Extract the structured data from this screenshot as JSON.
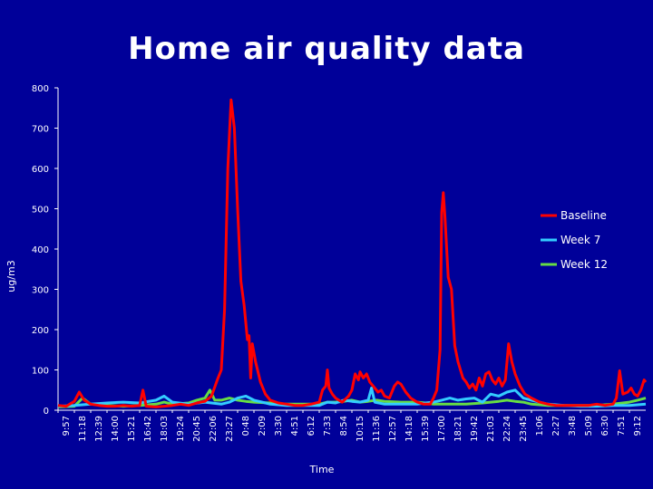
{
  "chart_data": {
    "type": "line",
    "title": "Home air quality data",
    "xlabel": "Time",
    "ylabel": "ug/m3",
    "ylim": [
      0,
      800
    ],
    "yticks": [
      0,
      100,
      200,
      300,
      400,
      500,
      600,
      700,
      800
    ],
    "categories": [
      "9:57",
      "11:18",
      "12:39",
      "14:00",
      "15:21",
      "16:42",
      "18:03",
      "19:24",
      "20:45",
      "22:06",
      "23:27",
      "0:48",
      "2:09",
      "3:30",
      "4:51",
      "6:12",
      "7:33",
      "8:54",
      "10:15",
      "11:36",
      "12:57",
      "14:18",
      "15:39",
      "17:00",
      "18:21",
      "19:42",
      "21:03",
      "22:24",
      "23:45",
      "1:06",
      "2:27",
      "3:48",
      "5:09",
      "6:30",
      "7:51",
      "9:12"
    ],
    "legend_position": "right",
    "grid": false,
    "series": [
      {
        "name": "Baseline",
        "color": "#ff0000",
        "values": [
          [
            0,
            12
          ],
          [
            0.5,
            10
          ],
          [
            1,
            22
          ],
          [
            1.3,
            45
          ],
          [
            1.6,
            25
          ],
          [
            2,
            15
          ],
          [
            2.5,
            12
          ],
          [
            3,
            10
          ],
          [
            3.5,
            10
          ],
          [
            4,
            12
          ],
          [
            4.5,
            10
          ],
          [
            5,
            12
          ],
          [
            5.2,
            50
          ],
          [
            5.4,
            10
          ],
          [
            6,
            8
          ],
          [
            6.5,
            10
          ],
          [
            7,
            12
          ],
          [
            7.5,
            15
          ],
          [
            8,
            12
          ],
          [
            8.5,
            18
          ],
          [
            9,
            22
          ],
          [
            9.4,
            35
          ],
          [
            9.8,
            80
          ],
          [
            10,
            100
          ],
          [
            10.2,
            250
          ],
          [
            10.4,
            600
          ],
          [
            10.6,
            770
          ],
          [
            10.8,
            700
          ],
          [
            11,
            500
          ],
          [
            11.2,
            320
          ],
          [
            11.4,
            260
          ],
          [
            11.6,
            175
          ],
          [
            11.7,
            185
          ],
          [
            11.8,
            80
          ],
          [
            11.9,
            165
          ],
          [
            12.1,
            120
          ],
          [
            12.4,
            70
          ],
          [
            12.7,
            40
          ],
          [
            13,
            25
          ],
          [
            13.5,
            18
          ],
          [
            14,
            15
          ],
          [
            14.5,
            12
          ],
          [
            15,
            12
          ],
          [
            15.5,
            15
          ],
          [
            16,
            20
          ],
          [
            16.2,
            50
          ],
          [
            16.4,
            60
          ],
          [
            16.5,
            100
          ],
          [
            16.6,
            55
          ],
          [
            16.8,
            40
          ],
          [
            17,
            30
          ],
          [
            17.4,
            20
          ],
          [
            17.8,
            35
          ],
          [
            18,
            50
          ],
          [
            18.2,
            90
          ],
          [
            18.4,
            75
          ],
          [
            18.5,
            95
          ],
          [
            18.7,
            80
          ],
          [
            18.9,
            90
          ],
          [
            19.1,
            70
          ],
          [
            19.3,
            60
          ],
          [
            19.6,
            45
          ],
          [
            19.8,
            50
          ],
          [
            20,
            35
          ],
          [
            20.3,
            30
          ],
          [
            20.6,
            60
          ],
          [
            20.8,
            70
          ],
          [
            21,
            65
          ],
          [
            21.3,
            45
          ],
          [
            21.6,
            30
          ],
          [
            22,
            20
          ],
          [
            22.4,
            15
          ],
          [
            22.8,
            15
          ],
          [
            23,
            30
          ],
          [
            23.2,
            50
          ],
          [
            23.4,
            150
          ],
          [
            23.5,
            490
          ],
          [
            23.6,
            540
          ],
          [
            23.7,
            480
          ],
          [
            23.9,
            330
          ],
          [
            24.1,
            300
          ],
          [
            24.3,
            160
          ],
          [
            24.5,
            120
          ],
          [
            24.8,
            80
          ],
          [
            25,
            70
          ],
          [
            25.2,
            55
          ],
          [
            25.4,
            65
          ],
          [
            25.6,
            50
          ],
          [
            25.8,
            80
          ],
          [
            26,
            60
          ],
          [
            26.2,
            90
          ],
          [
            26.4,
            95
          ],
          [
            26.6,
            75
          ],
          [
            26.8,
            65
          ],
          [
            27,
            80
          ],
          [
            27.2,
            60
          ],
          [
            27.4,
            75
          ],
          [
            27.6,
            165
          ],
          [
            27.8,
            120
          ],
          [
            28,
            90
          ],
          [
            28.3,
            60
          ],
          [
            28.6,
            40
          ],
          [
            29,
            30
          ],
          [
            29.5,
            20
          ],
          [
            30,
            15
          ],
          [
            30.5,
            12
          ],
          [
            31,
            12
          ],
          [
            31.5,
            12
          ],
          [
            32,
            12
          ],
          [
            32.5,
            12
          ],
          [
            33,
            15
          ],
          [
            33.5,
            12
          ],
          [
            34,
            15
          ],
          [
            34.2,
            30
          ],
          [
            34.4,
            98
          ],
          [
            34.6,
            40
          ],
          [
            34.9,
            45
          ],
          [
            35.1,
            55
          ],
          [
            35.3,
            40
          ],
          [
            35.5,
            35
          ],
          [
            35.7,
            50
          ],
          [
            35.9,
            75
          ],
          [
            36,
            70
          ]
        ]
      },
      {
        "name": "Week 7",
        "color": "#33ccff",
        "values": [
          [
            0,
            10
          ],
          [
            1,
            12
          ],
          [
            2,
            15
          ],
          [
            3,
            18
          ],
          [
            4,
            20
          ],
          [
            5,
            18
          ],
          [
            6,
            25
          ],
          [
            6.5,
            35
          ],
          [
            7,
            20
          ],
          [
            8,
            15
          ],
          [
            9,
            20
          ],
          [
            10,
            15
          ],
          [
            10.5,
            20
          ],
          [
            11,
            30
          ],
          [
            11.5,
            35
          ],
          [
            12,
            25
          ],
          [
            12.5,
            20
          ],
          [
            13,
            15
          ],
          [
            14,
            12
          ],
          [
            15,
            12
          ],
          [
            16,
            12
          ],
          [
            16.5,
            20
          ],
          [
            17,
            18
          ],
          [
            17.5,
            25
          ],
          [
            18,
            22
          ],
          [
            18.5,
            20
          ],
          [
            19,
            25
          ],
          [
            19.2,
            55
          ],
          [
            19.4,
            20
          ],
          [
            20,
            15
          ],
          [
            21,
            15
          ],
          [
            22,
            15
          ],
          [
            22.5,
            18
          ],
          [
            23,
            20
          ],
          [
            23.5,
            25
          ],
          [
            24,
            30
          ],
          [
            24.5,
            25
          ],
          [
            25,
            28
          ],
          [
            25.5,
            30
          ],
          [
            26,
            20
          ],
          [
            26.5,
            40
          ],
          [
            27,
            35
          ],
          [
            27.5,
            45
          ],
          [
            28,
            50
          ],
          [
            28.5,
            30
          ],
          [
            29,
            25
          ],
          [
            30,
            15
          ],
          [
            31,
            12
          ],
          [
            32,
            10
          ],
          [
            33,
            10
          ],
          [
            34,
            12
          ],
          [
            35,
            12
          ],
          [
            36,
            15
          ]
        ]
      },
      {
        "name": "Week 12",
        "color": "#66dd44",
        "values": [
          [
            0,
            8
          ],
          [
            1,
            10
          ],
          [
            1.5,
            30
          ],
          [
            2,
            15
          ],
          [
            3,
            12
          ],
          [
            4,
            10
          ],
          [
            5,
            12
          ],
          [
            6,
            15
          ],
          [
            6.5,
            20
          ],
          [
            7,
            15
          ],
          [
            8,
            18
          ],
          [
            8.5,
            25
          ],
          [
            9,
            30
          ],
          [
            9.3,
            50
          ],
          [
            9.6,
            25
          ],
          [
            10,
            25
          ],
          [
            10.5,
            30
          ],
          [
            11,
            25
          ],
          [
            11.5,
            22
          ],
          [
            12,
            20
          ],
          [
            13,
            18
          ],
          [
            14,
            15
          ],
          [
            15,
            15
          ],
          [
            16,
            15
          ],
          [
            16.5,
            20
          ],
          [
            17,
            20
          ],
          [
            17.5,
            22
          ],
          [
            18,
            25
          ],
          [
            18.5,
            20
          ],
          [
            19,
            22
          ],
          [
            19.5,
            25
          ],
          [
            20,
            22
          ],
          [
            21,
            20
          ],
          [
            22,
            20
          ],
          [
            22.5,
            18
          ],
          [
            23,
            15
          ],
          [
            24,
            15
          ],
          [
            25,
            15
          ],
          [
            26,
            18
          ],
          [
            26.5,
            20
          ],
          [
            27,
            22
          ],
          [
            27.5,
            25
          ],
          [
            28,
            22
          ],
          [
            28.5,
            20
          ],
          [
            29,
            15
          ],
          [
            30,
            12
          ],
          [
            31,
            12
          ],
          [
            32,
            12
          ],
          [
            33,
            12
          ],
          [
            34,
            15
          ],
          [
            35,
            20
          ],
          [
            35.5,
            25
          ],
          [
            36,
            30
          ]
        ]
      }
    ]
  }
}
